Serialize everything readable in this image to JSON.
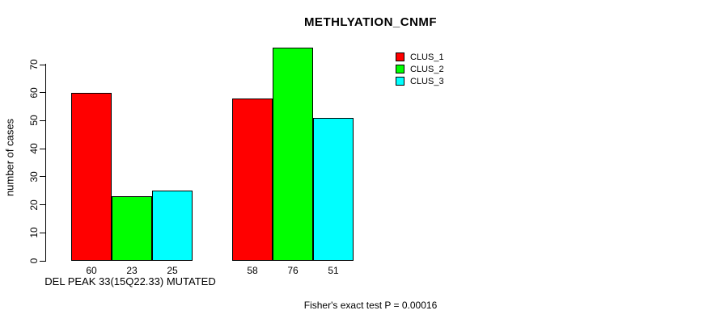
{
  "chart_data": {
    "type": "bar",
    "title": "METHLYATION_CNMF",
    "ylabel": "number of cases",
    "xlabel": "DEL PEAK 33(15Q22.33) MUTATED",
    "annotation": "Fisher's exact test P = 0.00016",
    "series": [
      {
        "name": "CLUS_1",
        "color": "#ff0000",
        "values": [
          60,
          58
        ]
      },
      {
        "name": "CLUS_2",
        "color": "#00ff00",
        "values": [
          23,
          76
        ]
      },
      {
        "name": "CLUS_3",
        "color": "#00ffff",
        "values": [
          25,
          51
        ]
      }
    ],
    "bar_value_labels": [
      [
        60,
        23,
        25
      ],
      [
        58,
        76,
        51
      ]
    ],
    "yticks": [
      0,
      10,
      20,
      30,
      40,
      50,
      60,
      70
    ],
    "ylim": [
      0,
      70
    ],
    "grid": false,
    "legend_position": "top-right",
    "legend_entries": [
      "CLUS_1",
      "CLUS_2",
      "CLUS_3"
    ],
    "bar_border_color": "#000000",
    "axis_color": "#000000",
    "background_color": "#ffffff"
  }
}
